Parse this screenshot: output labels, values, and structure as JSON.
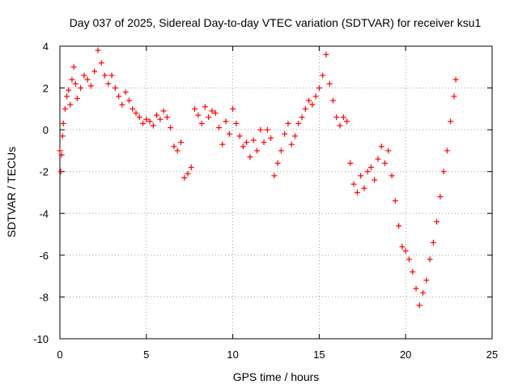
{
  "chart_data": {
    "type": "scatter",
    "title": "Day 037 of 2025, Sidereal Day-to-day VTEC variation (SDTVAR) for receiver ksu1",
    "xlabel": "GPS time / hours",
    "ylabel": "SDTVAR / TECUs",
    "xlim": [
      0,
      25
    ],
    "ylim": [
      -10,
      4
    ],
    "xticks": [
      0,
      5,
      10,
      15,
      20,
      25
    ],
    "xtick_labels": [
      "0",
      "5",
      "10",
      "15",
      "20",
      "25"
    ],
    "yticks": [
      4,
      2,
      0,
      -2,
      -4,
      -6,
      -8,
      -10
    ],
    "ytick_labels": [
      "4",
      "2",
      "0",
      "-2",
      "-4",
      "-6",
      "-8",
      "-10"
    ],
    "grid": true,
    "marker": "+",
    "color": "#ff0000",
    "series": [
      {
        "name": "SDTVAR",
        "points": [
          [
            0.0,
            -1.0
          ],
          [
            0.05,
            -2.0
          ],
          [
            0.1,
            -1.2
          ],
          [
            0.15,
            -0.3
          ],
          [
            0.2,
            0.3
          ],
          [
            0.3,
            1.0
          ],
          [
            0.4,
            1.6
          ],
          [
            0.5,
            1.9
          ],
          [
            0.6,
            1.2
          ],
          [
            0.7,
            2.4
          ],
          [
            0.8,
            3.0
          ],
          [
            0.9,
            2.2
          ],
          [
            1.0,
            1.5
          ],
          [
            1.2,
            2.0
          ],
          [
            1.4,
            2.6
          ],
          [
            1.6,
            2.4
          ],
          [
            1.8,
            2.1
          ],
          [
            2.0,
            2.8
          ],
          [
            2.2,
            3.8
          ],
          [
            2.4,
            3.2
          ],
          [
            2.6,
            2.6
          ],
          [
            2.8,
            2.2
          ],
          [
            3.0,
            2.6
          ],
          [
            3.2,
            2.0
          ],
          [
            3.4,
            1.6
          ],
          [
            3.6,
            1.2
          ],
          [
            3.8,
            1.8
          ],
          [
            4.0,
            1.4
          ],
          [
            4.2,
            1.0
          ],
          [
            4.4,
            0.8
          ],
          [
            4.6,
            0.6
          ],
          [
            4.8,
            0.3
          ],
          [
            5.0,
            0.5
          ],
          [
            5.2,
            0.4
          ],
          [
            5.4,
            0.2
          ],
          [
            5.6,
            0.7
          ],
          [
            5.8,
            0.5
          ],
          [
            6.0,
            0.9
          ],
          [
            6.2,
            0.6
          ],
          [
            6.4,
            0.1
          ],
          [
            6.6,
            -0.8
          ],
          [
            6.8,
            -1.0
          ],
          [
            7.0,
            -0.6
          ],
          [
            7.2,
            -2.3
          ],
          [
            7.4,
            -2.1
          ],
          [
            7.6,
            -1.8
          ],
          [
            7.8,
            1.0
          ],
          [
            8.0,
            0.7
          ],
          [
            8.2,
            0.3
          ],
          [
            8.4,
            1.1
          ],
          [
            8.6,
            0.6
          ],
          [
            8.8,
            0.9
          ],
          [
            9.0,
            0.8
          ],
          [
            9.2,
            0.1
          ],
          [
            9.4,
            -0.7
          ],
          [
            9.6,
            0.4
          ],
          [
            9.8,
            -0.2
          ],
          [
            10.0,
            1.0
          ],
          [
            10.2,
            0.3
          ],
          [
            10.4,
            -0.3
          ],
          [
            10.6,
            -0.8
          ],
          [
            10.8,
            -0.6
          ],
          [
            11.0,
            -1.3
          ],
          [
            11.2,
            -0.5
          ],
          [
            11.4,
            -1.0
          ],
          [
            11.6,
            0.0
          ],
          [
            11.8,
            -0.6
          ],
          [
            12.0,
            0.0
          ],
          [
            12.2,
            -0.4
          ],
          [
            12.4,
            -2.2
          ],
          [
            12.6,
            -1.6
          ],
          [
            12.8,
            -1.0
          ],
          [
            13.0,
            -0.2
          ],
          [
            13.2,
            0.3
          ],
          [
            13.4,
            -0.7
          ],
          [
            13.6,
            -0.3
          ],
          [
            13.8,
            0.3
          ],
          [
            14.0,
            0.6
          ],
          [
            14.2,
            1.0
          ],
          [
            14.4,
            1.4
          ],
          [
            14.6,
            1.2
          ],
          [
            14.8,
            1.6
          ],
          [
            15.0,
            2.0
          ],
          [
            15.2,
            2.6
          ],
          [
            15.4,
            3.6
          ],
          [
            15.6,
            2.2
          ],
          [
            15.8,
            1.4
          ],
          [
            16.0,
            0.6
          ],
          [
            16.2,
            0.2
          ],
          [
            16.4,
            0.6
          ],
          [
            16.6,
            0.4
          ],
          [
            16.8,
            -1.6
          ],
          [
            17.0,
            -2.6
          ],
          [
            17.2,
            -3.0
          ],
          [
            17.4,
            -2.2
          ],
          [
            17.6,
            -2.8
          ],
          [
            17.8,
            -2.0
          ],
          [
            18.0,
            -1.8
          ],
          [
            18.2,
            -2.4
          ],
          [
            18.4,
            -1.4
          ],
          [
            18.6,
            -0.8
          ],
          [
            18.8,
            -1.6
          ],
          [
            19.0,
            -1.0
          ],
          [
            19.2,
            -2.2
          ],
          [
            19.4,
            -3.4
          ],
          [
            19.6,
            -4.6
          ],
          [
            19.8,
            -5.6
          ],
          [
            20.0,
            -5.8
          ],
          [
            20.2,
            -6.2
          ],
          [
            20.4,
            -6.8
          ],
          [
            20.6,
            -7.6
          ],
          [
            20.8,
            -8.4
          ],
          [
            21.0,
            -7.8
          ],
          [
            21.2,
            -7.2
          ],
          [
            21.4,
            -6.2
          ],
          [
            21.6,
            -5.4
          ],
          [
            21.8,
            -4.4
          ],
          [
            22.0,
            -3.2
          ],
          [
            22.2,
            -2.0
          ],
          [
            22.4,
            -1.0
          ],
          [
            22.6,
            0.4
          ],
          [
            22.8,
            1.6
          ],
          [
            22.9,
            2.4
          ]
        ]
      }
    ]
  }
}
